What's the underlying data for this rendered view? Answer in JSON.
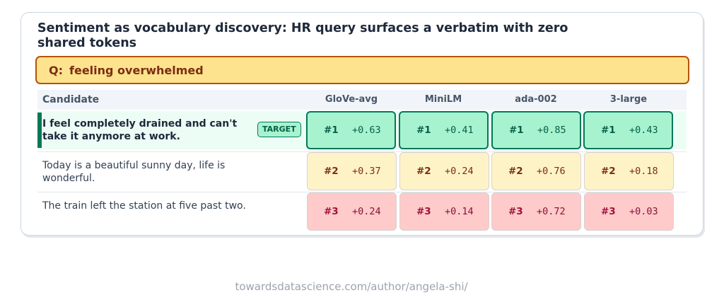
{
  "title": "Sentiment as vocabulary discovery: HR query surfaces a verbatim with zero shared tokens",
  "query": {
    "prefix": "Q:",
    "text": "feeling overwhelmed"
  },
  "table": {
    "candidate_header": "Candidate",
    "models": [
      "GloVe-avg",
      "MiniLM",
      "ada-002",
      "3-large"
    ],
    "rows": [
      {
        "text": "I feel completely drained and can't take it anymore at work.",
        "badge": "TARGET",
        "cells": [
          {
            "rank": "#1",
            "score": "+0.63"
          },
          {
            "rank": "#1",
            "score": "+0.41"
          },
          {
            "rank": "#1",
            "score": "+0.85"
          },
          {
            "rank": "#1",
            "score": "+0.43"
          }
        ]
      },
      {
        "text": "Today is a beautiful sunny day, life is wonderful.",
        "cells": [
          {
            "rank": "#2",
            "score": "+0.37"
          },
          {
            "rank": "#2",
            "score": "+0.24"
          },
          {
            "rank": "#2",
            "score": "+0.76"
          },
          {
            "rank": "#2",
            "score": "+0.18"
          }
        ]
      },
      {
        "text": "The train left the station at five past two.",
        "cells": [
          {
            "rank": "#3",
            "score": "+0.24"
          },
          {
            "rank": "#3",
            "score": "+0.14"
          },
          {
            "rank": "#3",
            "score": "+0.72"
          },
          {
            "rank": "#3",
            "score": "+0.03"
          }
        ]
      }
    ]
  },
  "colors": {
    "rank1": "#a7f3d0",
    "rank2": "#fef3c7",
    "rank3": "#fecaca",
    "query_bg": "#fde38e"
  },
  "footer": "towardsdatascience.com/author/angela-shi/"
}
